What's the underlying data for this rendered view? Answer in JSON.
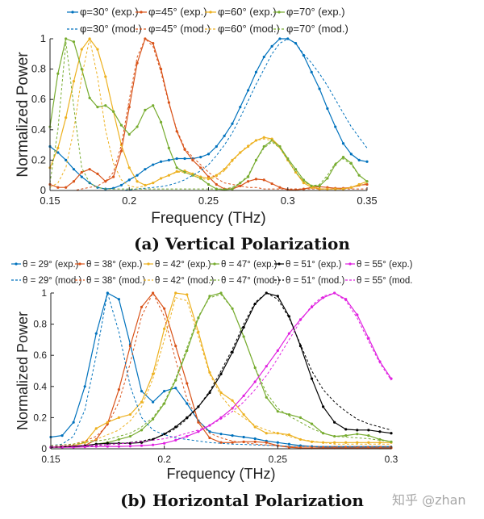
{
  "captions": {
    "a": "(a) Vertical Polarization",
    "b": "(b) Horizontal Polarization"
  },
  "watermark": "知乎 @zhan",
  "colors": {
    "blue": "#0072BD",
    "red": "#D95319",
    "yellow": "#EDB120",
    "green": "#77AC30",
    "black": "#000000",
    "magenta": "#E020E0"
  },
  "chart_data": [
    {
      "type": "line",
      "xlabel": "Frequency (THz)",
      "ylabel": "Normalized Power",
      "xlim": [
        0.15,
        0.35
      ],
      "ylim": [
        0,
        1
      ],
      "xticks": [
        "0.15",
        "0.2",
        "0.25",
        "0.3",
        "0.35"
      ],
      "yticks": [
        "0",
        "0.2",
        "0.4",
        "0.6",
        "0.8",
        "1"
      ],
      "grid": false,
      "legend": "top",
      "x": [
        0.15,
        0.155,
        0.16,
        0.165,
        0.17,
        0.175,
        0.18,
        0.185,
        0.19,
        0.195,
        0.2,
        0.205,
        0.21,
        0.215,
        0.22,
        0.225,
        0.23,
        0.235,
        0.24,
        0.245,
        0.25,
        0.255,
        0.26,
        0.265,
        0.27,
        0.275,
        0.28,
        0.285,
        0.29,
        0.295,
        0.3,
        0.305,
        0.31,
        0.315,
        0.32,
        0.325,
        0.33,
        0.335,
        0.34,
        0.345,
        0.35
      ],
      "series": [
        {
          "name": "φ=30° (exp.)",
          "color": "#0072BD",
          "style": "solid-marker",
          "values": [
            0.29,
            0.25,
            0.2,
            0.14,
            0.09,
            0.05,
            0.02,
            0.01,
            0.015,
            0.035,
            0.07,
            0.1,
            0.14,
            0.17,
            0.19,
            0.2,
            0.21,
            0.21,
            0.21,
            0.22,
            0.24,
            0.29,
            0.36,
            0.44,
            0.55,
            0.66,
            0.78,
            0.88,
            0.95,
            1.0,
            1.0,
            0.97,
            0.89,
            0.78,
            0.67,
            0.54,
            0.42,
            0.31,
            0.24,
            0.2,
            0.19
          ]
        },
        {
          "name": "φ=45° (exp.)",
          "color": "#D95319",
          "style": "solid-marker",
          "values": [
            0.04,
            0.02,
            0.02,
            0.06,
            0.12,
            0.14,
            0.11,
            0.06,
            0.09,
            0.26,
            0.55,
            0.84,
            1.0,
            0.97,
            0.8,
            0.58,
            0.39,
            0.27,
            0.2,
            0.15,
            0.09,
            0.04,
            0.01,
            0.01,
            0.03,
            0.06,
            0.075,
            0.07,
            0.045,
            0.02,
            0.005,
            0.005,
            0.01,
            0.02,
            0.025,
            0.02,
            0.015,
            0.015,
            0.02,
            0.035,
            0.04
          ]
        },
        {
          "name": "φ=60° (exp.)",
          "color": "#EDB120",
          "style": "solid-marker",
          "values": [
            0.15,
            0.28,
            0.48,
            0.72,
            0.93,
            1.0,
            0.93,
            0.75,
            0.52,
            0.3,
            0.15,
            0.06,
            0.035,
            0.05,
            0.08,
            0.1,
            0.125,
            0.13,
            0.11,
            0.09,
            0.08,
            0.1,
            0.14,
            0.2,
            0.25,
            0.29,
            0.33,
            0.35,
            0.34,
            0.29,
            0.2,
            0.12,
            0.05,
            0.02,
            0.01,
            0.01,
            0.01,
            0.01,
            0.02,
            0.04,
            0.06
          ]
        },
        {
          "name": "φ=70° (exp.)",
          "color": "#77AC30",
          "style": "solid-marker",
          "values": [
            0.42,
            0.77,
            1.0,
            0.98,
            0.8,
            0.61,
            0.55,
            0.56,
            0.52,
            0.43,
            0.37,
            0.42,
            0.53,
            0.56,
            0.45,
            0.28,
            0.15,
            0.12,
            0.1,
            0.08,
            0.04,
            0.01,
            0.005,
            0.01,
            0.05,
            0.09,
            0.2,
            0.29,
            0.33,
            0.29,
            0.21,
            0.14,
            0.07,
            0.03,
            0.03,
            0.08,
            0.17,
            0.22,
            0.18,
            0.1,
            0.06
          ]
        },
        {
          "name": "φ=30° (mod.)",
          "color": "#0072BD",
          "style": "dashed",
          "values": [
            0,
            0,
            0,
            0,
            0,
            0,
            0,
            0,
            0,
            0,
            0.005,
            0.01,
            0.015,
            0.02,
            0.025,
            0.035,
            0.05,
            0.07,
            0.1,
            0.13,
            0.17,
            0.23,
            0.3,
            0.38,
            0.48,
            0.59,
            0.7,
            0.8,
            0.9,
            0.97,
            1.0,
            0.97,
            0.9,
            0.84,
            0.77,
            0.69,
            0.6,
            0.51,
            0.42,
            0.35,
            0.28
          ]
        },
        {
          "name": "φ=45° (mod.)",
          "color": "#D95319",
          "style": "dashed",
          "values": [
            0,
            0,
            0,
            0,
            0.01,
            0.02,
            0.03,
            0.06,
            0.12,
            0.3,
            0.6,
            0.88,
            1.0,
            0.95,
            0.78,
            0.57,
            0.4,
            0.28,
            0.22,
            0.17,
            0.12,
            0.08,
            0.05,
            0.04,
            0.03,
            0.02,
            0.02,
            0.01,
            0.01,
            0.01,
            0.01,
            0.01,
            0.01,
            0.01,
            0.01,
            0.01,
            0.01,
            0.01,
            0.01,
            0.01,
            0.01
          ]
        },
        {
          "name": "φ=60° (mod.)",
          "color": "#EDB120",
          "style": "dashed",
          "values": [
            0.02,
            0.05,
            0.15,
            0.4,
            0.75,
            1.0,
            0.75,
            0.4,
            0.18,
            0.07,
            0.03,
            0.02,
            0.03,
            0.05,
            0.08,
            0.1,
            0.12,
            0.12,
            0.1,
            0.08,
            0.07,
            0.09,
            0.13,
            0.19,
            0.25,
            0.3,
            0.33,
            0.34,
            0.33,
            0.28,
            0.2,
            0.12,
            0.06,
            0.03,
            0.01,
            0.01,
            0.01,
            0.01,
            0.02,
            0.03,
            0.05
          ]
        },
        {
          "name": "φ=70° (mod.)",
          "color": "#77AC30",
          "style": "dashed",
          "values": [
            0.05,
            0.4,
            0.98,
            0.55,
            0.15,
            0.05,
            0.02,
            0.01,
            0.01,
            0.01,
            0.01,
            0.01,
            0.01,
            0.01,
            0.01,
            0.01,
            0.01,
            0.01,
            0.01,
            0.01,
            0.01,
            0.01,
            0.01,
            0.02,
            0.05,
            0.1,
            0.2,
            0.28,
            0.32,
            0.28,
            0.2,
            0.12,
            0.06,
            0.03,
            0.04,
            0.1,
            0.18,
            0.21,
            0.17,
            0.1,
            0.06
          ]
        }
      ]
    },
    {
      "type": "line",
      "xlabel": "Frequency (THz)",
      "ylabel": "Normalized Power",
      "xlim": [
        0.15,
        0.3
      ],
      "ylim": [
        0,
        1
      ],
      "xticks": [
        "0.15",
        "0.2",
        "0.25",
        "0.3"
      ],
      "yticks": [
        "0",
        "0.2",
        "0.4",
        "0.6",
        "0.8",
        "1"
      ],
      "grid": false,
      "legend": "top",
      "x": [
        0.15,
        0.155,
        0.16,
        0.165,
        0.17,
        0.175,
        0.18,
        0.185,
        0.19,
        0.195,
        0.2,
        0.205,
        0.21,
        0.215,
        0.22,
        0.225,
        0.23,
        0.235,
        0.24,
        0.245,
        0.25,
        0.255,
        0.26,
        0.265,
        0.27,
        0.275,
        0.28,
        0.285,
        0.29,
        0.295,
        0.3
      ],
      "series": [
        {
          "name": "θ = 29° (exp.)",
          "color": "#0072BD",
          "style": "solid-marker",
          "values": [
            0.075,
            0.085,
            0.17,
            0.4,
            0.74,
            1.0,
            0.96,
            0.67,
            0.37,
            0.3,
            0.37,
            0.39,
            0.29,
            0.18,
            0.11,
            0.095,
            0.085,
            0.075,
            0.065,
            0.05,
            0.04,
            0.03,
            0.02,
            0.015,
            0.01,
            0.01,
            0.01,
            0.01,
            0.01,
            0.01,
            0.01
          ]
        },
        {
          "name": "θ = 38° (exp.)",
          "color": "#D95319",
          "style": "solid-marker",
          "values": [
            0.01,
            0.01,
            0.015,
            0.02,
            0.06,
            0.16,
            0.38,
            0.66,
            0.91,
            1.0,
            0.9,
            0.66,
            0.42,
            0.17,
            0.07,
            0.04,
            0.04,
            0.045,
            0.045,
            0.04,
            0.02,
            0.01,
            0.005,
            0.005,
            0.005,
            0.005,
            0.005,
            0.005,
            0.005,
            0.005,
            0.005
          ]
        },
        {
          "name": "θ = 42° (exp.)",
          "color": "#EDB120",
          "style": "solid-marker",
          "values": [
            0.01,
            0.015,
            0.02,
            0.04,
            0.13,
            0.17,
            0.2,
            0.22,
            0.3,
            0.48,
            0.77,
            1.0,
            0.99,
            0.75,
            0.49,
            0.36,
            0.31,
            0.22,
            0.14,
            0.1,
            0.1,
            0.09,
            0.06,
            0.045,
            0.04,
            0.04,
            0.04,
            0.04,
            0.04,
            0.04,
            0.04
          ]
        },
        {
          "name": "θ = 47° (exp.)",
          "color": "#77AC30",
          "style": "solid-marker",
          "values": [
            0.01,
            0.01,
            0.015,
            0.02,
            0.03,
            0.04,
            0.06,
            0.08,
            0.12,
            0.19,
            0.29,
            0.44,
            0.63,
            0.84,
            0.98,
            1.0,
            0.9,
            0.72,
            0.52,
            0.33,
            0.24,
            0.22,
            0.2,
            0.16,
            0.1,
            0.08,
            0.085,
            0.095,
            0.085,
            0.06,
            0.045
          ]
        },
        {
          "name": "θ = 51° (exp.)",
          "color": "#000000",
          "style": "solid-marker",
          "values": [
            0.01,
            0.012,
            0.015,
            0.02,
            0.03,
            0.035,
            0.035,
            0.035,
            0.04,
            0.06,
            0.095,
            0.14,
            0.2,
            0.27,
            0.36,
            0.48,
            0.62,
            0.78,
            0.93,
            1.0,
            0.98,
            0.85,
            0.66,
            0.45,
            0.27,
            0.17,
            0.125,
            0.12,
            0.12,
            0.11,
            0.1
          ]
        },
        {
          "name": "θ = 55° (exp.)",
          "color": "#E020E0",
          "style": "solid-marker",
          "values": [
            0.01,
            0.01,
            0.01,
            0.012,
            0.015,
            0.015,
            0.015,
            0.017,
            0.02,
            0.025,
            0.035,
            0.055,
            0.08,
            0.11,
            0.15,
            0.2,
            0.26,
            0.34,
            0.43,
            0.53,
            0.63,
            0.74,
            0.83,
            0.91,
            0.97,
            1.0,
            0.96,
            0.86,
            0.71,
            0.56,
            0.45
          ]
        },
        {
          "name": "θ = 29° (mod.)",
          "color": "#0072BD",
          "style": "dashed",
          "values": [
            0.02,
            0.03,
            0.08,
            0.25,
            0.6,
            1.0,
            0.75,
            0.4,
            0.2,
            0.12,
            0.09,
            0.07,
            0.06,
            0.05,
            0.04,
            0.035,
            0.03,
            0.028,
            0.025,
            0.022,
            0.02,
            0.015,
            0.015,
            0.015,
            0.015,
            0.015,
            0.015,
            0.015,
            0.015,
            0.015,
            0.015
          ]
        },
        {
          "name": "θ = 38° (mod.)",
          "color": "#D95319",
          "style": "dashed",
          "values": [
            0.01,
            0.015,
            0.03,
            0.05,
            0.08,
            0.15,
            0.3,
            0.55,
            0.85,
            1.0,
            0.85,
            0.57,
            0.32,
            0.18,
            0.1,
            0.07,
            0.05,
            0.04,
            0.03,
            0.025,
            0.02,
            0.015,
            0.015,
            0.015,
            0.015,
            0.015,
            0.015,
            0.015,
            0.015,
            0.015,
            0.015
          ]
        },
        {
          "name": "θ = 42° (mod.)",
          "color": "#EDB120",
          "style": "dashed",
          "values": [
            0.02,
            0.025,
            0.03,
            0.045,
            0.06,
            0.09,
            0.12,
            0.18,
            0.27,
            0.45,
            0.7,
            0.97,
            0.95,
            0.72,
            0.48,
            0.34,
            0.25,
            0.2,
            0.15,
            0.12,
            0.1,
            0.08,
            0.06,
            0.05,
            0.04,
            0.03,
            0.03,
            0.03,
            0.03,
            0.03,
            0.03
          ]
        },
        {
          "name": "θ = 47° (mod.)",
          "color": "#77AC30",
          "style": "dashed",
          "values": [
            0.02,
            0.025,
            0.03,
            0.04,
            0.05,
            0.06,
            0.08,
            0.1,
            0.14,
            0.2,
            0.3,
            0.45,
            0.65,
            0.85,
            0.97,
            0.99,
            0.9,
            0.72,
            0.52,
            0.36,
            0.26,
            0.21,
            0.17,
            0.13,
            0.1,
            0.08,
            0.075,
            0.07,
            0.065,
            0.055,
            0.045
          ]
        },
        {
          "name": "θ = 51° (mod.)",
          "color": "#000000",
          "style": "dashed",
          "values": [
            0.01,
            0.012,
            0.015,
            0.018,
            0.022,
            0.027,
            0.033,
            0.04,
            0.05,
            0.065,
            0.09,
            0.13,
            0.19,
            0.27,
            0.37,
            0.5,
            0.64,
            0.8,
            0.94,
            1.0,
            0.96,
            0.84,
            0.67,
            0.5,
            0.38,
            0.3,
            0.24,
            0.19,
            0.16,
            0.14,
            0.12
          ]
        },
        {
          "name": "θ = 55° (mod.",
          "color": "#E020E0",
          "style": "dashed",
          "values": [
            0.015,
            0.018,
            0.02,
            0.022,
            0.025,
            0.028,
            0.032,
            0.037,
            0.045,
            0.055,
            0.065,
            0.08,
            0.1,
            0.12,
            0.15,
            0.19,
            0.24,
            0.3,
            0.38,
            0.47,
            0.58,
            0.7,
            0.82,
            0.92,
            0.98,
            1.0,
            0.95,
            0.84,
            0.69,
            0.55,
            0.44
          ]
        }
      ]
    }
  ]
}
